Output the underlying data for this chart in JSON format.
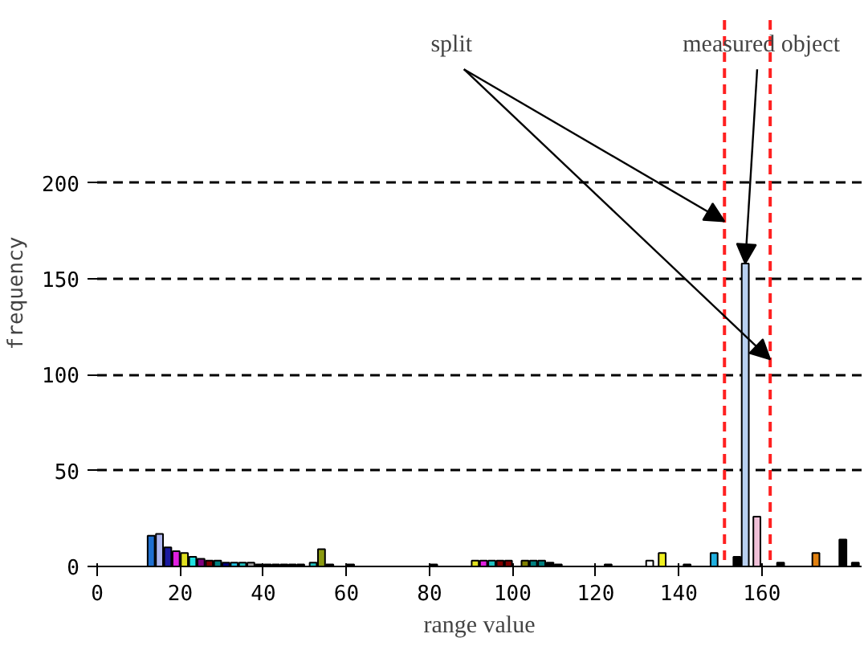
{
  "chart_data": {
    "type": "bar",
    "x": [
      13,
      15,
      17,
      19,
      21,
      23,
      25,
      27,
      29,
      31,
      33,
      35,
      37,
      39,
      41,
      43,
      45,
      47,
      49,
      52,
      54,
      56,
      61,
      81,
      91,
      93,
      95,
      97,
      99,
      103,
      105,
      107,
      109,
      111,
      123,
      133,
      136,
      142,
      148.5,
      154,
      156,
      158.8,
      164.5,
      173,
      179.5,
      182.5
    ],
    "values": [
      16,
      17,
      10,
      8,
      7,
      5,
      4,
      3,
      3,
      2,
      2,
      2,
      2,
      1,
      1,
      1,
      1,
      1,
      1,
      2,
      9,
      1,
      1,
      1,
      3,
      3,
      3,
      3,
      3,
      3,
      3,
      3,
      2,
      1,
      1,
      3,
      7,
      1,
      7,
      5,
      158,
      26,
      2,
      7,
      14,
      2
    ],
    "colors": [
      "#1f6fd0",
      "#b0b8f0",
      "#1a1aa0",
      "#e020e0",
      "#e0e020",
      "#20e0e0",
      "#800080",
      "#800000",
      "#008080",
      "#000080",
      "#20c0e0",
      "#20c0c0",
      "#a0a0a0",
      "#000000",
      "#000000",
      "#000000",
      "#000000",
      "#000000",
      "#000000",
      "#20c0c0",
      "#8a9a10",
      "#000000",
      "#000000",
      "#000000",
      "#e0e020",
      "#e020e0",
      "#20c0c0",
      "#800000",
      "#800000",
      "#808000",
      "#008080",
      "#008080",
      "#000000",
      "#000000",
      "#000000",
      "#ffffff",
      "#f0f020",
      "#000000",
      "#20b0e0",
      "#000000",
      "#b8d0f0",
      "#f0c0d8",
      "#000000",
      "#e08010",
      "#000000",
      "#000000"
    ],
    "xlim": [
      0,
      184
    ],
    "ylim": [
      0,
      285
    ],
    "xticks": [
      0,
      20,
      40,
      60,
      80,
      100,
      120,
      140,
      160
    ],
    "yticks": [
      0,
      50,
      100,
      150,
      200
    ],
    "xlabel": "range value",
    "ylabel": "frequency",
    "grid": "y",
    "ref_lines": [
      {
        "axis": "x",
        "value": 151,
        "color": "#ff2020",
        "line_style": "dashed"
      },
      {
        "axis": "x",
        "value": 162,
        "color": "#ff2020",
        "line_style": "dashed"
      }
    ],
    "annotations": [
      {
        "text": "split",
        "x": 151,
        "y": 180
      },
      {
        "text": "measured object",
        "x": 156,
        "y": 158
      }
    ]
  }
}
